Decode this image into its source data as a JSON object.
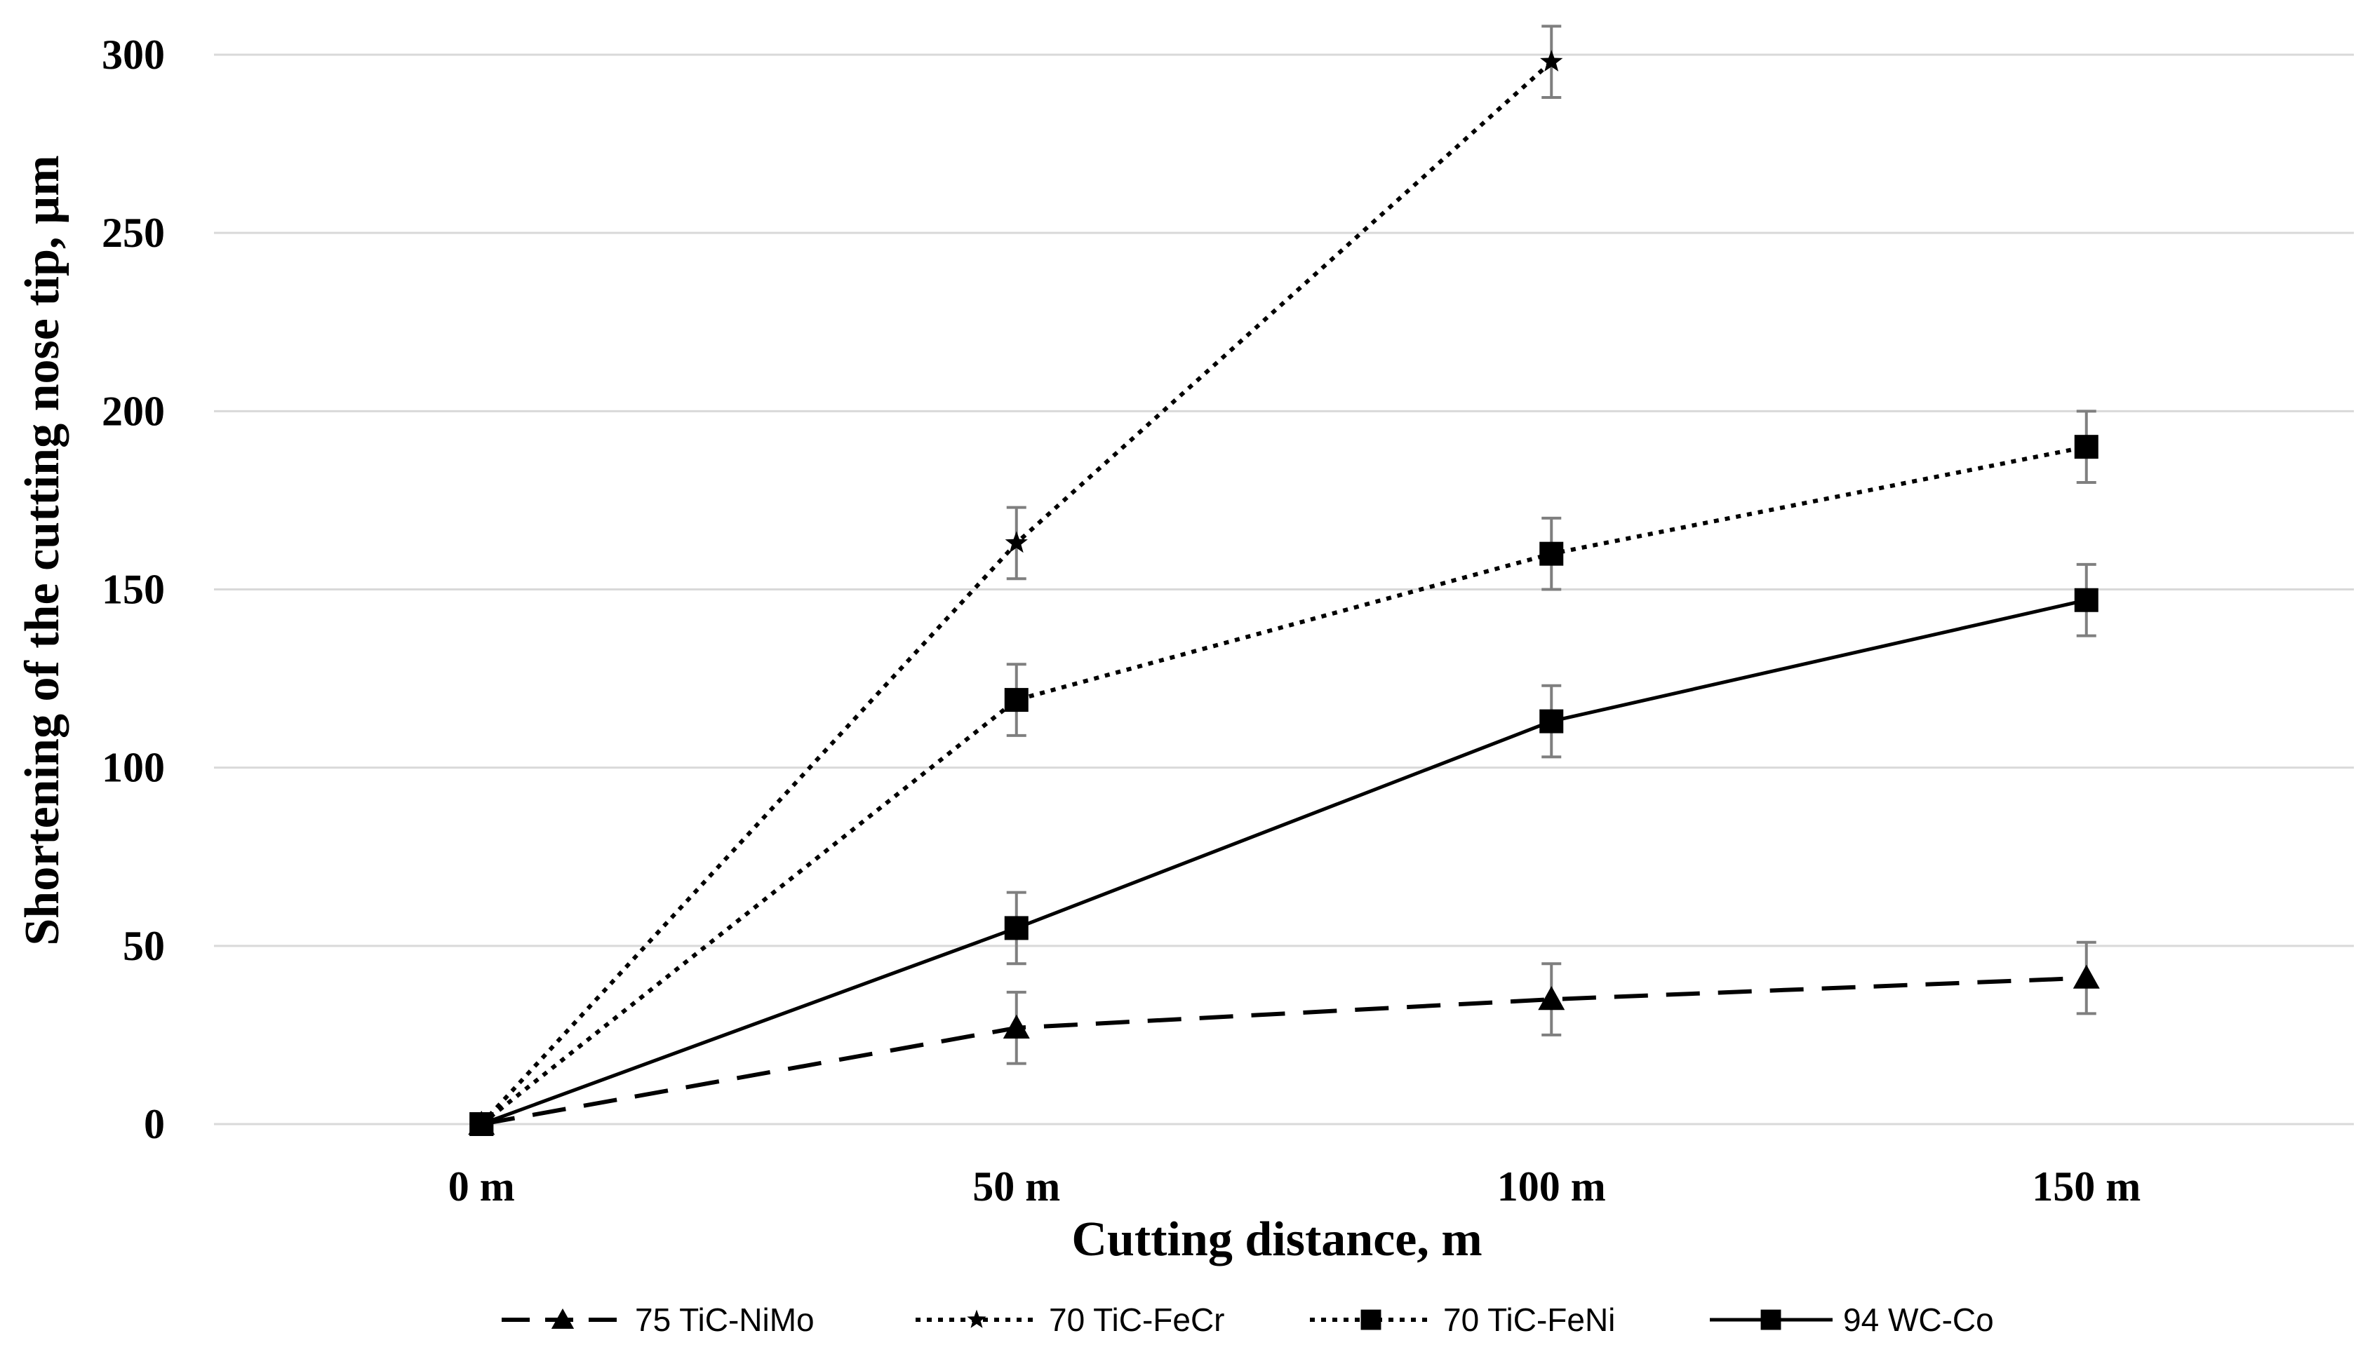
{
  "chart_data": {
    "type": "line",
    "title": "",
    "xlabel": "Cutting distance, m",
    "ylabel": "Shortening of the cutting nose tip, µm",
    "categories": [
      "0 m",
      "50 m",
      "100 m",
      "150 m"
    ],
    "ylim": [
      0,
      300
    ],
    "yticks": [
      0,
      50,
      100,
      150,
      200,
      250,
      300
    ],
    "grid": true,
    "legend_position": "bottom",
    "error_bar": 10,
    "series": [
      {
        "name": "75 TiC-NiMo",
        "values": [
          0,
          27,
          35,
          41
        ],
        "line_style": "dashed",
        "marker": "triangle",
        "color": "#000000"
      },
      {
        "name": "70 TiC-FeCr",
        "values": [
          0,
          163,
          298,
          null
        ],
        "line_style": "dotted",
        "marker": "star",
        "color": "#000000"
      },
      {
        "name": "70 TiC-FeNi",
        "values": [
          0,
          119,
          160,
          190
        ],
        "line_style": "dotted",
        "marker": "square",
        "color": "#000000"
      },
      {
        "name": "94 WC-Co",
        "values": [
          0,
          55,
          113,
          147
        ],
        "line_style": "solid",
        "marker": "square",
        "color": "#000000"
      }
    ]
  }
}
